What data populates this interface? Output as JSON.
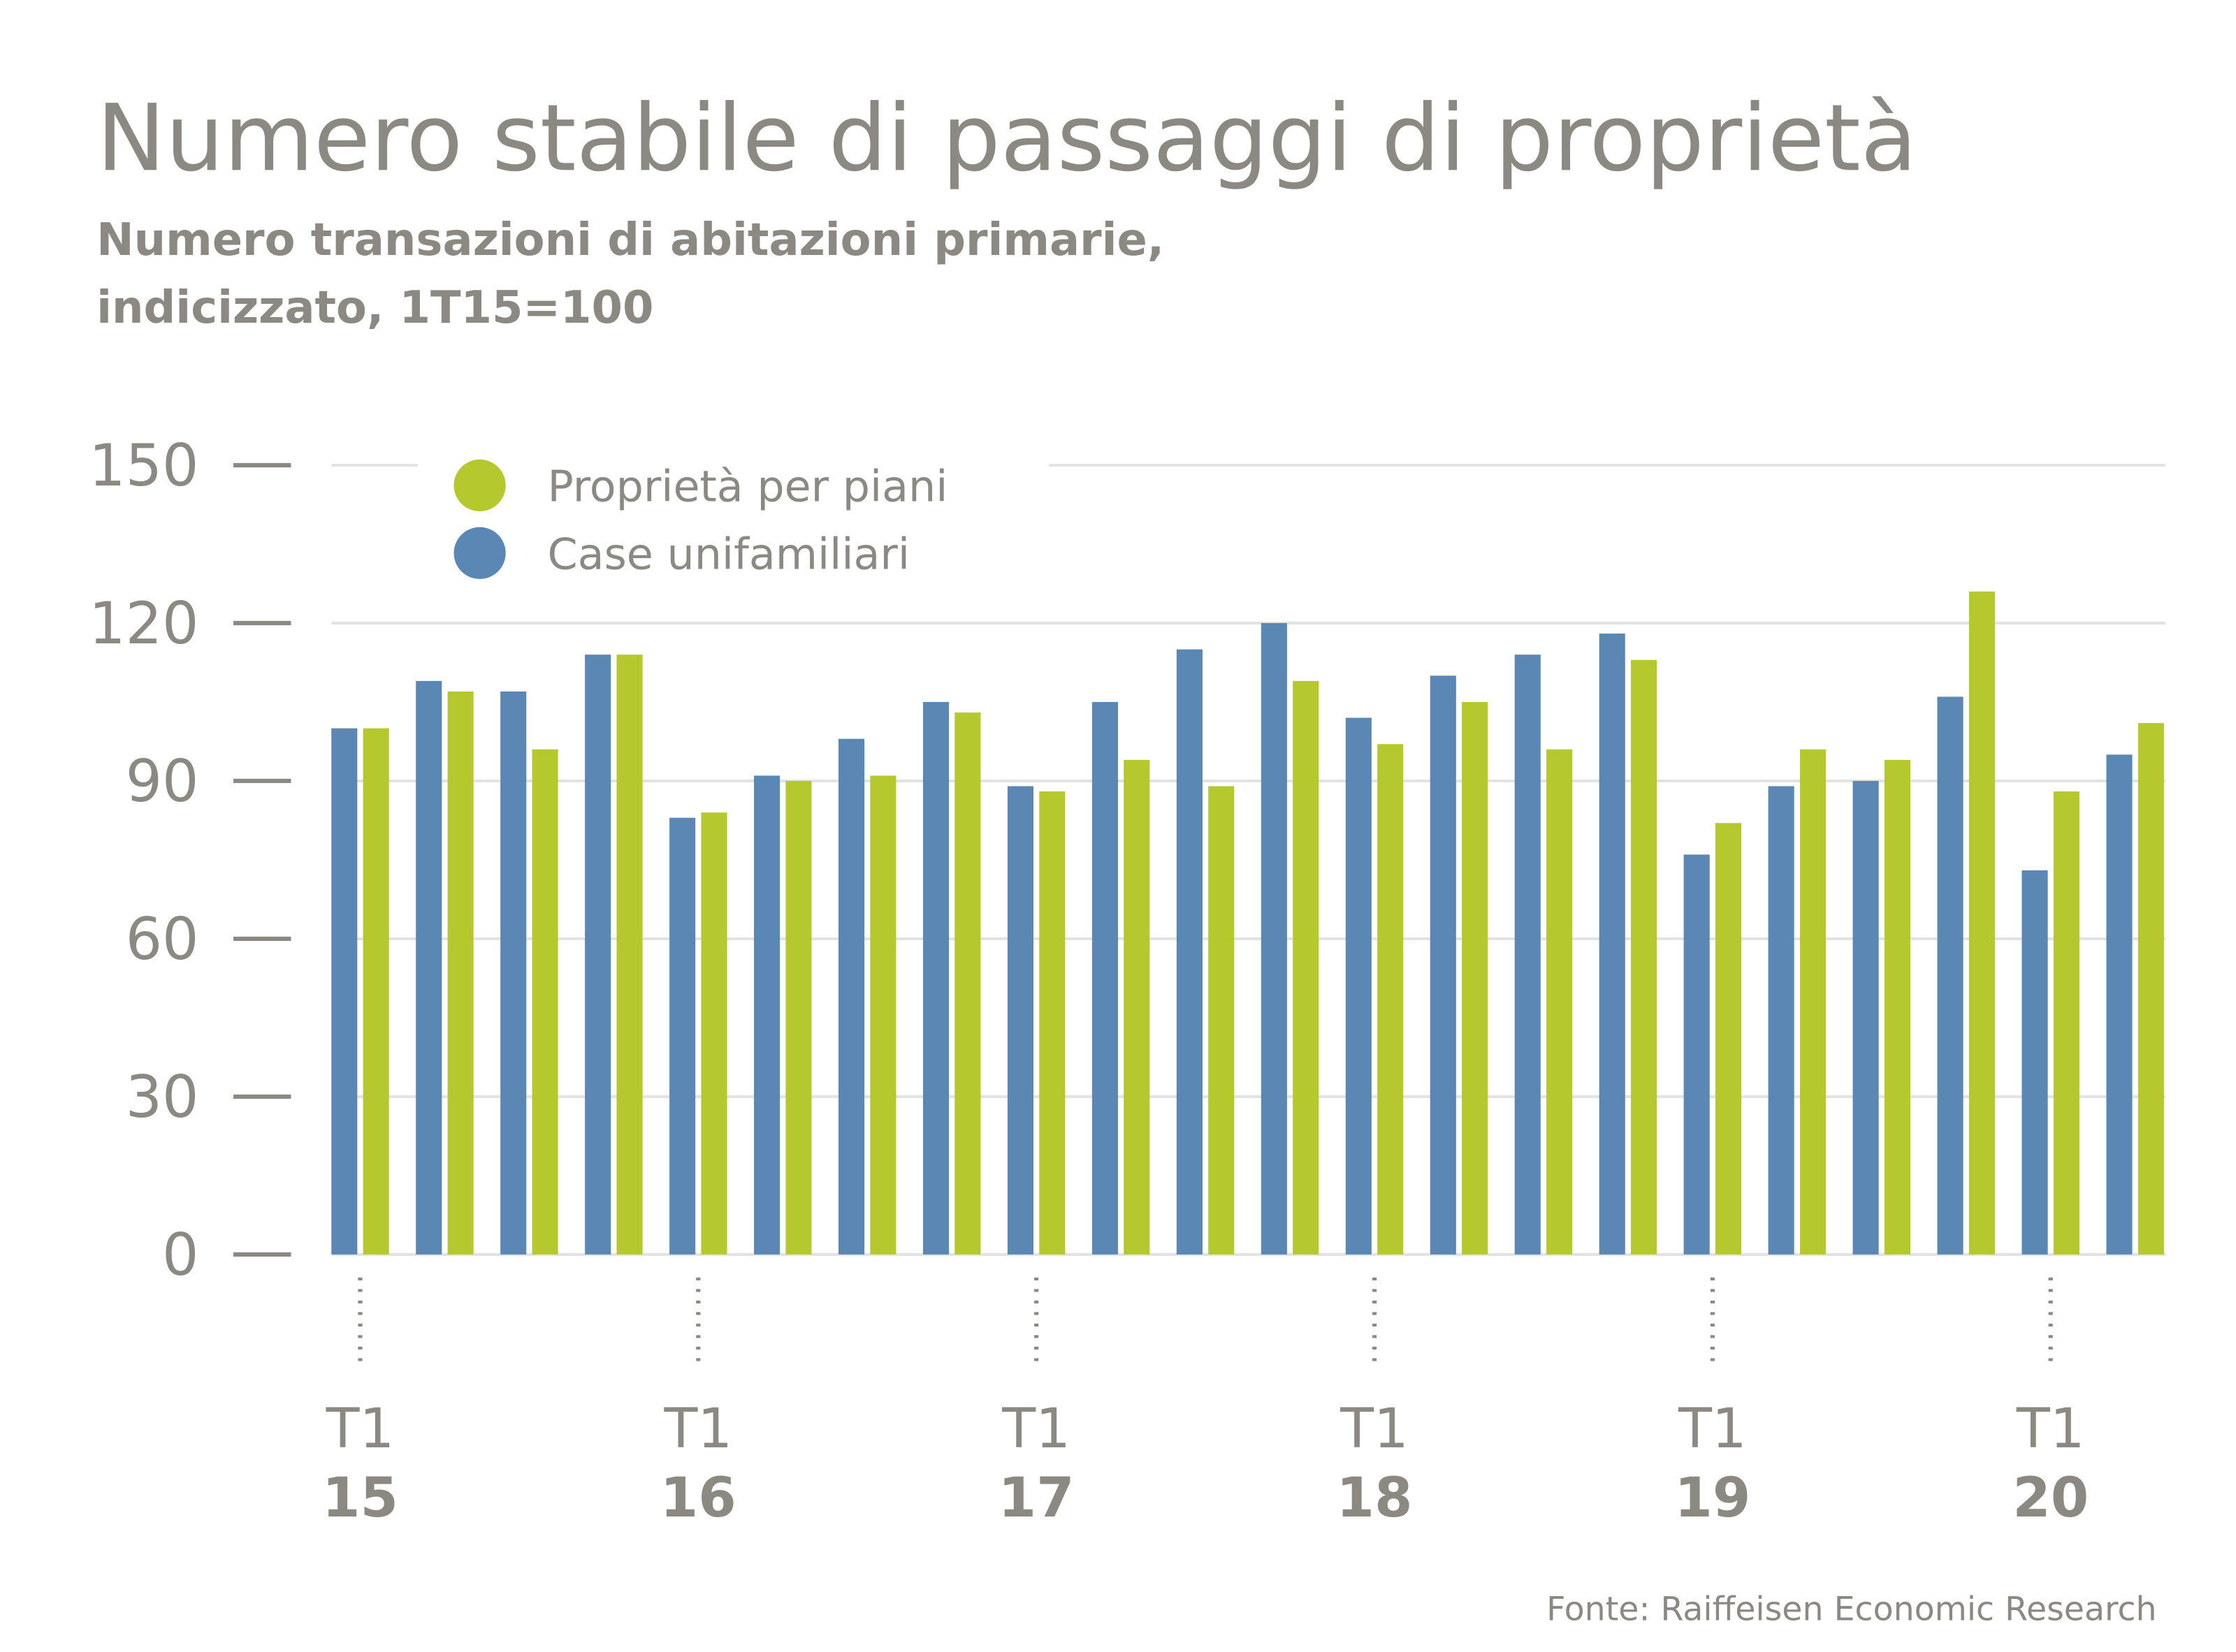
{
  "chart_data": {
    "type": "bar",
    "title": "Numero stabile di passaggi di proprietà",
    "subtitle": [
      "Numero transazioni di abitazioni primarie,",
      "indicizzato, 1T15=100"
    ],
    "source": "Fonte: Raiffeisen Economic Research",
    "categories": [
      "T1",
      null,
      null,
      null,
      "T1",
      null,
      null,
      null,
      "T1",
      null,
      null,
      null,
      "T1",
      null,
      null,
      null,
      "T1",
      null,
      null,
      null,
      "T1",
      null
    ],
    "category_years": [
      "15",
      null,
      null,
      null,
      "16",
      null,
      null,
      null,
      "17",
      null,
      null,
      null,
      "18",
      null,
      null,
      null,
      "19",
      null,
      null,
      null,
      "20",
      null
    ],
    "series": [
      {
        "name": "Case unifamiliari",
        "color": "#5b87b5",
        "values": [
          100,
          109,
          107,
          114,
          83,
          91,
          98,
          105,
          89,
          105,
          115,
          120,
          102,
          110,
          114,
          118,
          76,
          89,
          90,
          106,
          73,
          95
        ]
      },
      {
        "name": "Proprietà per piani",
        "color": "#b5c92e",
        "values": [
          100,
          107,
          96,
          114,
          84,
          90,
          91,
          103,
          88,
          94,
          89,
          109,
          97,
          105,
          96,
          113,
          82,
          96,
          94,
          126,
          88,
          101
        ]
      }
    ],
    "legend_order": [
      1,
      0
    ],
    "ylim": [
      0,
      150
    ],
    "yticks": [
      0,
      30,
      60,
      90,
      120,
      150
    ],
    "grid": true
  }
}
